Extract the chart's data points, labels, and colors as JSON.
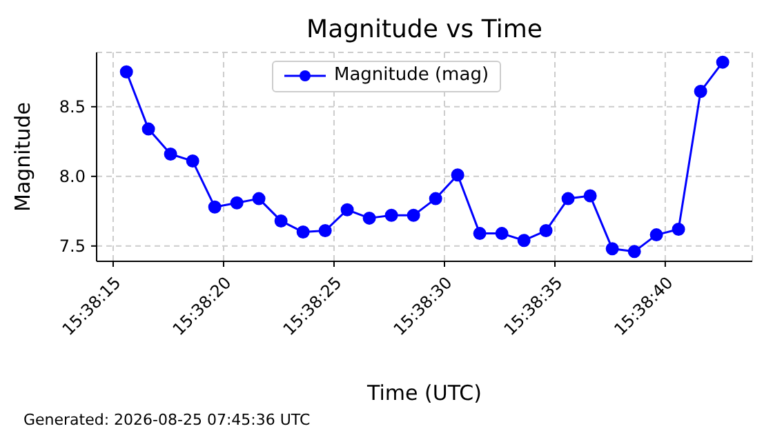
{
  "chart_data": {
    "type": "line",
    "title": "Magnitude vs Time",
    "xlabel": "Time (UTC)",
    "ylabel": "Magnitude",
    "annotations": [
      "Generated: 2026-08-25 07:45:36 UTC"
    ],
    "x": [
      15.637667,
      15.637944,
      15.638222,
      15.6385,
      15.638778,
      15.639056,
      15.639333,
      15.639611,
      15.639889,
      15.640167,
      15.640444,
      15.640722,
      15.641,
      15.641278,
      15.641556,
      15.641833,
      15.642111,
      15.642389,
      15.642667,
      15.642944,
      15.643222,
      15.6435,
      15.643778,
      15.644056,
      15.644333,
      15.644611,
      15.644889,
      15.645167
    ],
    "series": [
      {
        "name": "Magnitude (mag)",
        "color": "#0000ff",
        "values": [
          8.75,
          8.34,
          8.16,
          8.11,
          7.78,
          7.81,
          7.84,
          7.68,
          7.6,
          7.61,
          7.76,
          7.7,
          7.72,
          7.72,
          7.84,
          8.01,
          7.59,
          7.59,
          7.54,
          7.61,
          7.84,
          7.86,
          7.48,
          7.46,
          7.58,
          7.62,
          8.61,
          8.82
        ]
      }
    ],
    "xlim": [
      15.637292,
      15.645539
    ],
    "xticks": [
      {
        "value": 15.6375,
        "label": "15:38:15"
      },
      {
        "value": 15.638889,
        "label": "15:38:20"
      },
      {
        "value": 15.640278,
        "label": "15:38:25"
      },
      {
        "value": 15.641667,
        "label": "15:38:30"
      },
      {
        "value": 15.643056,
        "label": "15:38:35"
      },
      {
        "value": 15.644444,
        "label": "15:38:40"
      }
    ],
    "ylim": [
      7.39,
      8.89
    ],
    "yticks": [
      {
        "value": 7.5,
        "label": "7.5"
      },
      {
        "value": 8,
        "label": "8.0"
      },
      {
        "value": 8.5,
        "label": "8.5"
      }
    ],
    "grid": true,
    "legend": "top",
    "marker": "circle",
    "line_style": "solid"
  }
}
